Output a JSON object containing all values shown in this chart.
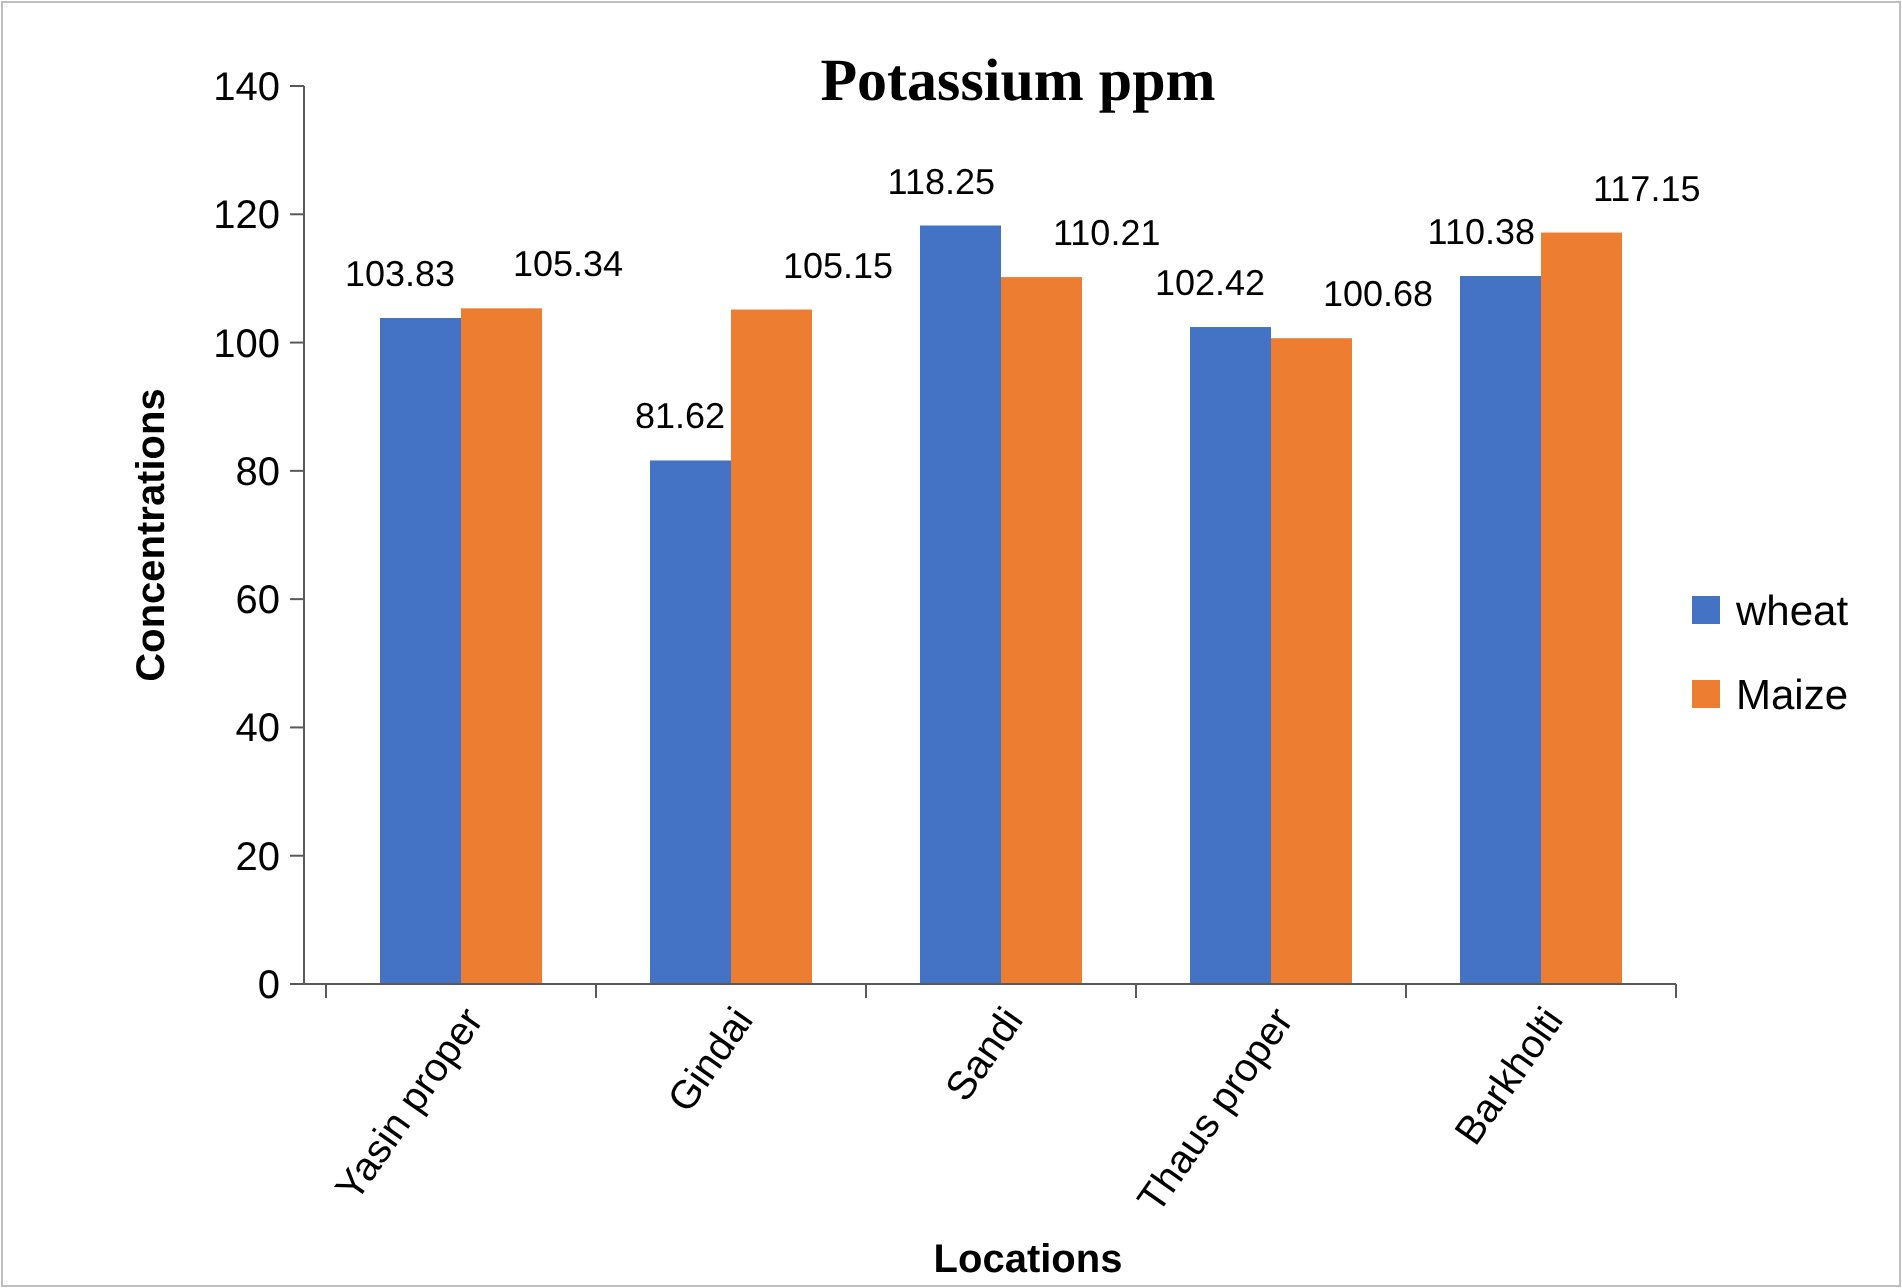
{
  "chart_data": {
    "type": "bar",
    "title": "Potassium ppm",
    "xlabel": "Locations",
    "ylabel": "Concentrations",
    "categories": [
      "Yasin proper",
      "Gindai",
      "Sandi",
      "Thaus proper",
      "Barkholti"
    ],
    "series": [
      {
        "name": "wheat",
        "color": "#4472c4",
        "values": [
          103.83,
          81.62,
          118.25,
          102.42,
          110.38
        ]
      },
      {
        "name": "Maize",
        "color": "#ed7d31",
        "values": [
          105.34,
          105.15,
          110.21,
          100.68,
          117.15
        ]
      }
    ],
    "ylim": [
      0,
      140
    ],
    "yticks": [
      0,
      20,
      40,
      60,
      80,
      100,
      120,
      140
    ],
    "grid": false,
    "legend": "right",
    "data_labels": true
  }
}
